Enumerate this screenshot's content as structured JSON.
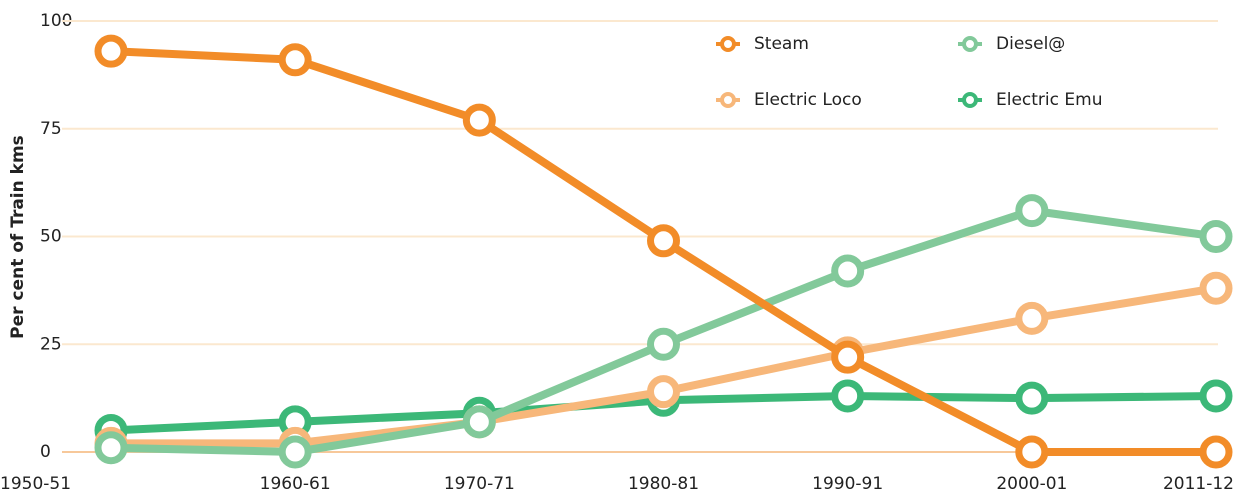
{
  "chart_data": {
    "type": "line",
    "y_label": "Per cent of Train kms",
    "categories": [
      "1950-51",
      "1960-61",
      "1970-71",
      "1980-81",
      "1990-91",
      "2000-01",
      "2011-12"
    ],
    "series": [
      {
        "name": "Electric Emu",
        "color": "#3cb878",
        "values": [
          5,
          7,
          9,
          12,
          13,
          12.5,
          13
        ]
      },
      {
        "name": "Electric Loco",
        "color": "#f7b77a",
        "values": [
          2,
          2,
          7,
          14,
          23,
          31,
          38
        ]
      },
      {
        "name": "Diesel@",
        "color": "#82c99a",
        "values": [
          1,
          0,
          7,
          25,
          42,
          56,
          50
        ]
      },
      {
        "name": "Steam",
        "color": "#f28c28",
        "values": [
          93,
          91,
          77,
          49,
          22,
          0,
          0
        ]
      }
    ],
    "ylim": [
      0,
      100
    ],
    "yticks": [
      0,
      25,
      50,
      75,
      100
    ],
    "grid": true,
    "legend": "top-right"
  }
}
